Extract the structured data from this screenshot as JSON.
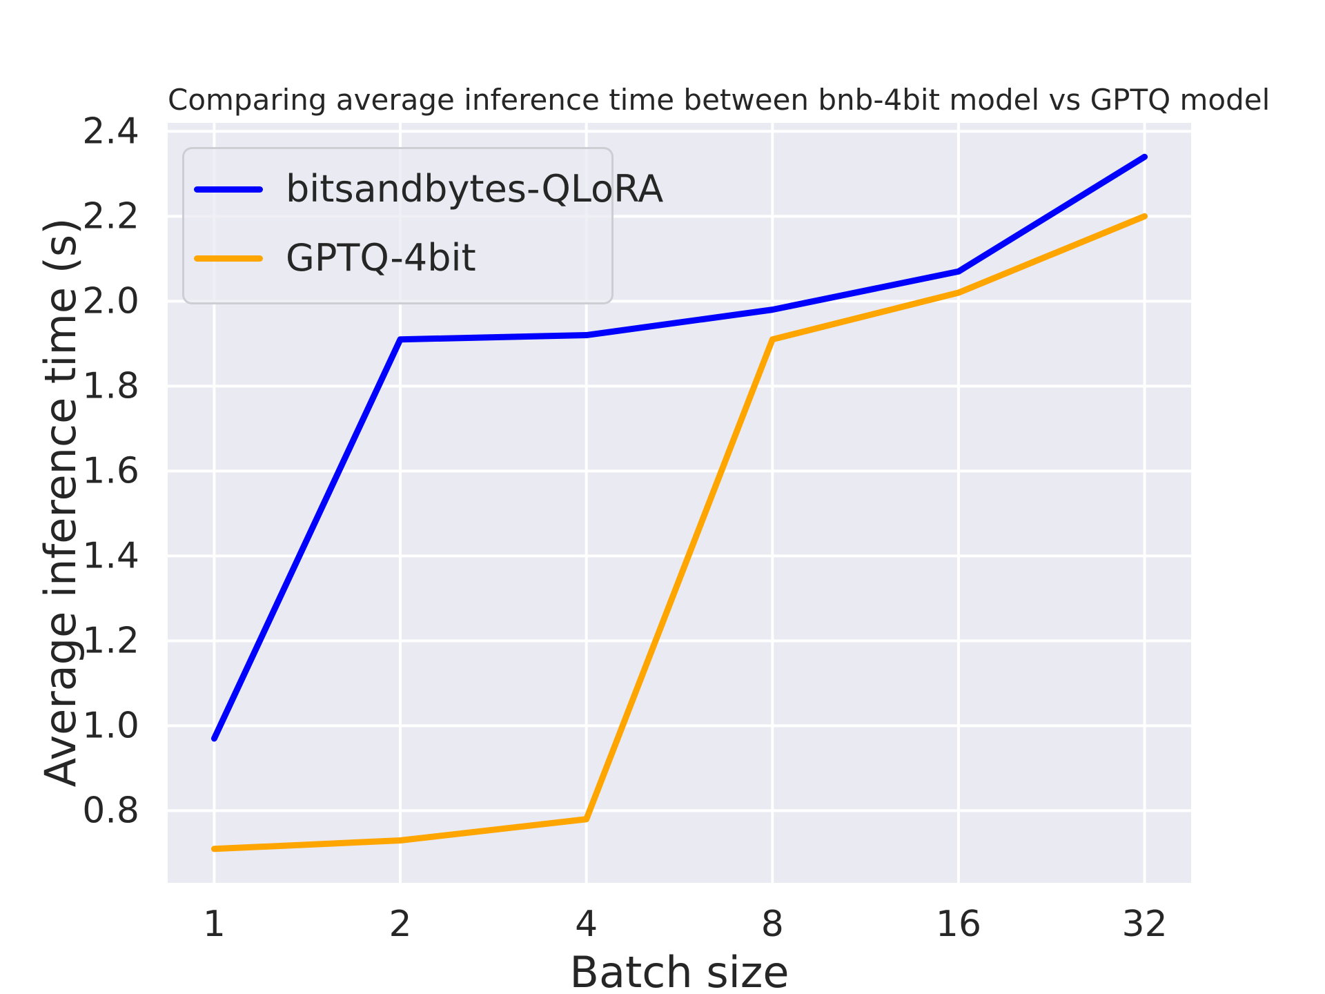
{
  "chart_data": {
    "type": "line",
    "title": "Comparing average inference time between bnb-4bit model vs GPTQ model",
    "xlabel": "Batch size",
    "ylabel": "Average inference time (s)",
    "categories": [
      "1",
      "2",
      "4",
      "8",
      "16",
      "32"
    ],
    "series": [
      {
        "name": "bitsandbytes-QLoRA",
        "color": "#0000FF",
        "values": [
          0.97,
          1.91,
          1.92,
          1.98,
          2.07,
          2.34
        ]
      },
      {
        "name": "GPTQ-4bit",
        "color": "#FFA500",
        "values": [
          0.71,
          0.73,
          0.78,
          1.91,
          2.02,
          2.2
        ]
      }
    ],
    "yticks": [
      0.8,
      1.0,
      1.2,
      1.4,
      1.6,
      1.8,
      2.0,
      2.2,
      2.4
    ],
    "ylim": [
      0.63,
      2.42
    ],
    "xlim_index": [
      -0.25,
      5.25
    ],
    "grid": true,
    "legend_position": "upper left",
    "colors": {
      "axes_background": "#EAEAF2",
      "grid": "#FFFFFF",
      "text": "#262626",
      "figure_background": "#FFFFFF"
    }
  }
}
